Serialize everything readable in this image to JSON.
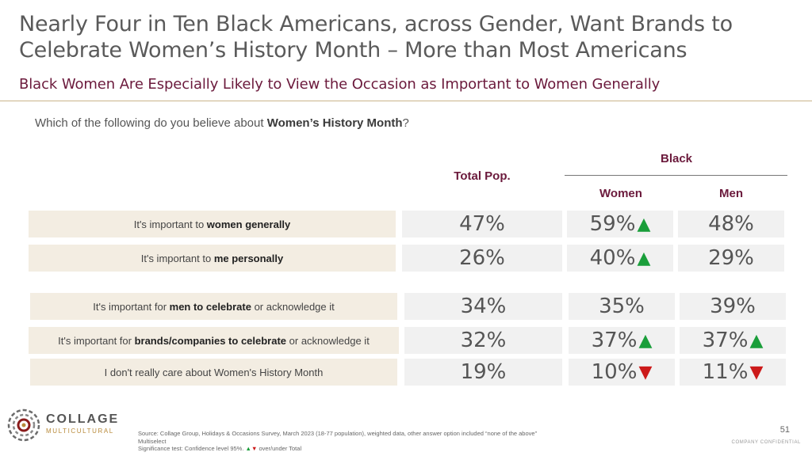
{
  "title": "Nearly Four in Ten Black Americans, across Gender, Want Brands to Celebrate Women’s History Month – More than Most Americans",
  "subtitle": "Black Women Are Especially Likely to View the Occasion as Important to Women Generally",
  "question": {
    "prefix": "Which of the following do you believe about ",
    "bold": "Women’s History Month",
    "suffix": "?"
  },
  "headers": {
    "total": "Total Pop.",
    "group": "Black",
    "women": "Women",
    "men": "Men"
  },
  "colors": {
    "accent": "#6b1a3c",
    "label_bg": "#f3ede2",
    "value_bg": "#f1f1f1",
    "up": "#1a9e3a",
    "down": "#cc1a1a"
  },
  "rows": [
    {
      "label_pre": "It's important to ",
      "label_bold": "women generally",
      "label_post": "",
      "total": "47%",
      "women": "59%",
      "women_sig": "up",
      "men": "48%",
      "men_sig": ""
    },
    {
      "label_pre": "It's important to ",
      "label_bold": "me personally",
      "label_post": "",
      "total": "26%",
      "women": "40%",
      "women_sig": "up",
      "men": "29%",
      "men_sig": ""
    },
    {
      "label_pre": "It's important for ",
      "label_bold": "men to celebrate",
      "label_post": " or acknowledge it",
      "total": "34%",
      "women": "35%",
      "women_sig": "",
      "men": "39%",
      "men_sig": ""
    },
    {
      "label_pre": "It's important for ",
      "label_bold": "brands/companies to celebrate",
      "label_post": " or acknowledge it",
      "total": "32%",
      "women": "37%",
      "women_sig": "up",
      "men": "37%",
      "men_sig": "up"
    },
    {
      "label_pre": "I don't really care about Women's History Month",
      "label_bold": "",
      "label_post": "",
      "total": "19%",
      "women": "10%",
      "women_sig": "down",
      "men": "11%",
      "men_sig": "down"
    }
  ],
  "logo": {
    "main": "COLLAGE",
    "sub": "MULTICULTURAL",
    "icon": "collage-swirl-logo"
  },
  "source": {
    "line1": "Source: Collage Group, Holidays & Occasions Survey, March 2023 (18-77 population), weighted data, other answer option included “none of the above”",
    "line2": "Multiselect",
    "line3_pre": "Significance test: Confidence level 95%. ",
    "line3_post": " over/under Total"
  },
  "page_number": "51",
  "confidential": "COMPANY CONFIDENTIAL"
}
